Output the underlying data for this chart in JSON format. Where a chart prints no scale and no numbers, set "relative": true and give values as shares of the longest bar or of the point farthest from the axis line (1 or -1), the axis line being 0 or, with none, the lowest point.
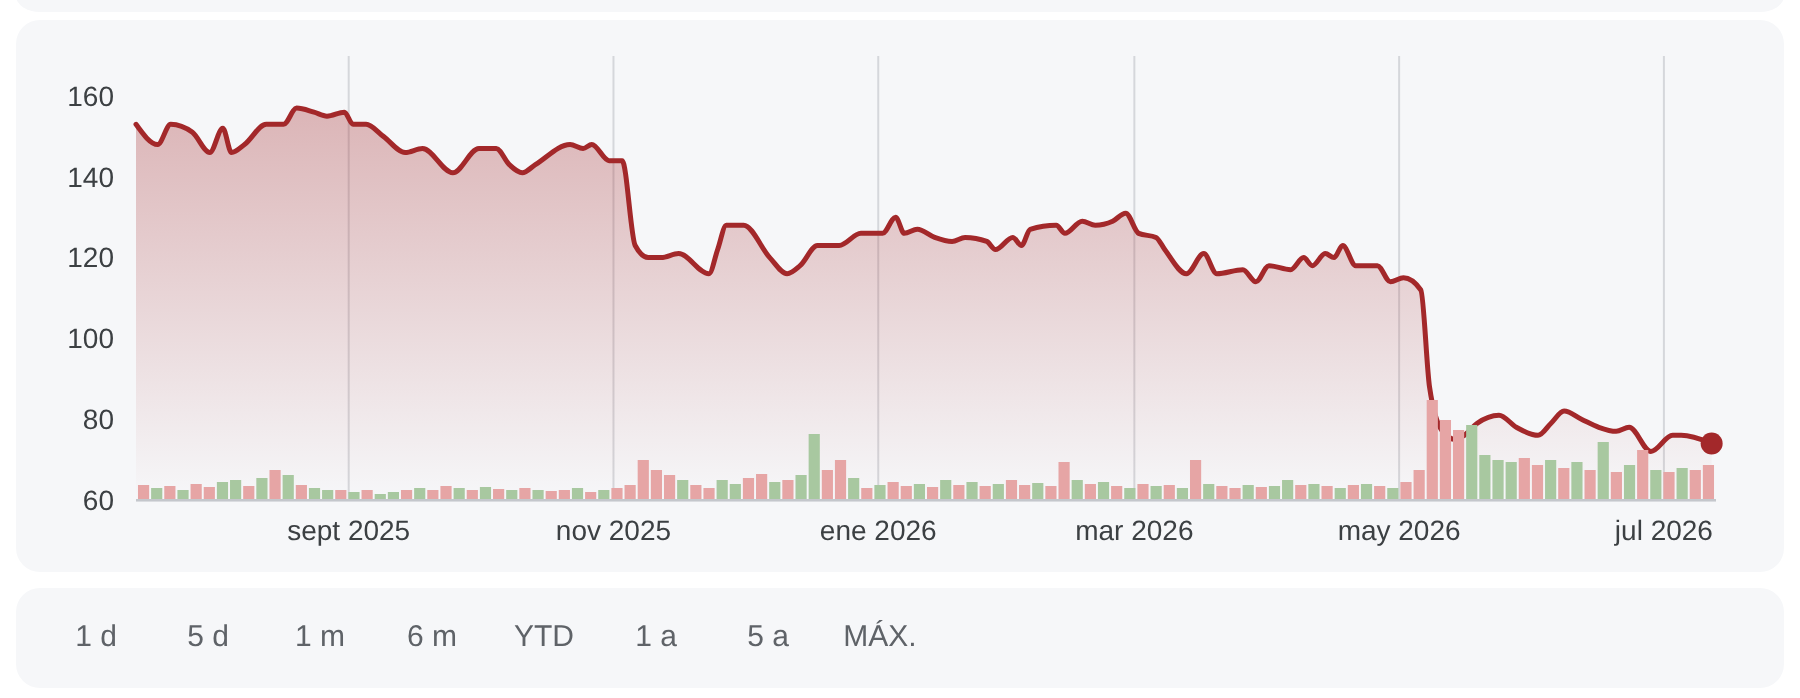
{
  "chart_data": [
    {
      "type": "area",
      "xlim": [
        "2025-07-14",
        "2026-07-13"
      ],
      "ylim": [
        60,
        160
      ],
      "yticks": [
        60,
        80,
        100,
        120,
        140,
        160
      ],
      "grid": "x",
      "xticks": [
        {
          "value": "2025-09-01",
          "label": "sept 2025"
        },
        {
          "value": "2025-11-01",
          "label": "nov 2025"
        },
        {
          "value": "2026-01-01",
          "label": "ene 2026"
        },
        {
          "value": "2026-03-01",
          "label": "mar 2026"
        },
        {
          "value": "2026-05-01",
          "label": "may 2026"
        },
        {
          "value": "2026-07-01",
          "label": "jul 2026"
        }
      ],
      "x": [
        "2025-07-14",
        "2025-07-19",
        "2025-07-22",
        "2025-07-27",
        "2025-07-31",
        "2025-08-03",
        "2025-08-05",
        "2025-08-08",
        "2025-08-13",
        "2025-08-17",
        "2025-08-20",
        "2025-08-24",
        "2025-08-27",
        "2025-08-31",
        "2025-09-02",
        "2025-09-05",
        "2025-09-09",
        "2025-09-14",
        "2025-09-18",
        "2025-09-25",
        "2025-10-01",
        "2025-10-05",
        "2025-10-08",
        "2025-10-11",
        "2025-10-14",
        "2025-10-22",
        "2025-10-25",
        "2025-10-27",
        "2025-10-31",
        "2025-11-03",
        "2025-11-06",
        "2025-11-09",
        "2025-11-12",
        "2025-11-16",
        "2025-11-23",
        "2025-11-25",
        "2025-11-27",
        "2025-12-01",
        "2025-12-07",
        "2025-12-11",
        "2025-12-14",
        "2025-12-18",
        "2025-12-23",
        "2025-12-28",
        "2026-01-02",
        "2026-01-05",
        "2026-01-07",
        "2026-01-10",
        "2026-01-14",
        "2026-01-18",
        "2026-01-21",
        "2026-01-26",
        "2026-01-28",
        "2026-02-01",
        "2026-02-03",
        "2026-02-05",
        "2026-02-11",
        "2026-02-13",
        "2026-02-17",
        "2026-02-20",
        "2026-02-24",
        "2026-02-27",
        "2026-03-02",
        "2026-03-06",
        "2026-03-08",
        "2026-03-13",
        "2026-03-17",
        "2026-03-20",
        "2026-03-26",
        "2026-03-29",
        "2026-04-01",
        "2026-04-06",
        "2026-04-09",
        "2026-04-11",
        "2026-04-14",
        "2026-04-16",
        "2026-04-18",
        "2026-04-21",
        "2026-04-26",
        "2026-04-29",
        "2026-05-02",
        "2026-05-06",
        "2026-05-08",
        "2026-05-11",
        "2026-05-14",
        "2026-05-16",
        "2026-05-19",
        "2026-05-24",
        "2026-05-28",
        "2026-06-02",
        "2026-06-05",
        "2026-06-08",
        "2026-06-12",
        "2026-06-16",
        "2026-06-20",
        "2026-06-23",
        "2026-06-28",
        "2026-07-03",
        "2026-07-05",
        "2026-07-12"
      ],
      "series": [
        {
          "color": "#a3282a",
          "values": [
            153,
            148,
            153,
            151,
            146,
            152,
            146,
            148,
            153,
            153,
            157,
            156,
            155,
            156,
            153,
            153,
            150,
            146,
            147,
            141,
            147,
            147,
            143,
            141,
            143,
            148,
            147,
            148,
            144,
            144,
            123,
            120,
            120,
            121,
            116,
            122,
            128,
            128,
            120,
            116,
            118,
            123,
            123,
            126,
            126,
            130,
            126,
            127,
            125,
            124,
            125,
            124,
            122,
            125,
            123,
            127,
            128,
            126,
            129,
            128,
            129,
            131,
            126,
            125,
            122,
            116,
            121,
            116,
            117,
            114,
            118,
            117,
            120,
            118,
            121,
            120,
            123,
            118,
            118,
            114,
            115,
            112,
            88,
            77,
            75,
            76,
            79,
            81,
            78,
            76,
            79,
            82,
            80,
            78,
            77,
            78,
            72,
            76,
            76,
            74
          ]
        }
      ]
    },
    {
      "type": "bar",
      "relative": true,
      "categories": [
        null,
        null,
        null,
        null,
        null,
        null,
        null,
        null,
        null,
        null,
        null,
        null,
        null,
        null,
        null,
        null,
        null,
        null,
        null,
        null,
        null,
        null,
        null,
        null,
        null,
        null,
        null,
        null,
        null,
        null,
        null,
        null,
        null,
        null,
        null,
        null,
        null,
        null,
        null,
        null,
        null,
        null,
        null,
        null,
        null,
        null,
        null,
        null,
        null,
        null,
        null,
        null,
        null,
        null,
        null,
        null,
        null,
        null,
        null,
        null,
        null,
        null,
        null,
        null,
        null,
        null,
        null,
        null,
        null,
        null,
        null,
        null,
        null,
        null,
        null,
        null,
        null,
        null,
        null,
        null,
        null,
        null,
        null,
        null,
        null,
        null,
        null,
        null,
        null,
        null,
        null,
        null,
        null,
        null,
        null,
        null,
        null,
        null,
        null,
        null,
        null,
        null,
        null,
        null,
        null,
        null,
        null,
        null,
        null,
        null,
        null,
        null,
        null,
        null,
        null,
        null,
        null,
        null,
        null,
        null
      ],
      "values": [
        0.15,
        0.12,
        0.14,
        0.1,
        0.16,
        0.13,
        0.18,
        0.2,
        0.14,
        0.22,
        0.3,
        0.25,
        0.15,
        0.12,
        0.1,
        0.1,
        0.08,
        0.1,
        0.06,
        0.08,
        0.1,
        0.12,
        0.1,
        0.14,
        0.12,
        0.1,
        0.13,
        0.11,
        0.1,
        0.12,
        0.1,
        0.09,
        0.1,
        0.12,
        0.08,
        0.1,
        0.12,
        0.15,
        0.4,
        0.3,
        0.25,
        0.2,
        0.15,
        0.12,
        0.2,
        0.16,
        0.22,
        0.26,
        0.18,
        0.2,
        0.25,
        0.66,
        0.3,
        0.4,
        0.22,
        0.12,
        0.15,
        0.18,
        0.14,
        0.16,
        0.13,
        0.2,
        0.15,
        0.18,
        0.14,
        0.16,
        0.2,
        0.15,
        0.17,
        0.14,
        0.38,
        0.2,
        0.16,
        0.18,
        0.14,
        0.12,
        0.16,
        0.14,
        0.15,
        0.12,
        0.4,
        0.16,
        0.14,
        0.12,
        0.15,
        0.13,
        0.14,
        0.2,
        0.15,
        0.16,
        0.14,
        0.12,
        0.15,
        0.16,
        0.14,
        0.12,
        0.18,
        0.3,
        1.0,
        0.8,
        0.7,
        0.75,
        0.45,
        0.4,
        0.38,
        0.42,
        0.35,
        0.4,
        0.32,
        0.38,
        0.3,
        0.58,
        0.28,
        0.35,
        0.5,
        0.3,
        0.28,
        0.32,
        0.3,
        0.35
      ],
      "colors": [
        "#e6a5a5",
        "#a8c8a0",
        "#e6a5a5",
        "#a8c8a0",
        "#e6a5a5",
        "#e6a5a5",
        "#a8c8a0",
        "#a8c8a0",
        "#e6a5a5",
        "#a8c8a0",
        "#e6a5a5",
        "#a8c8a0",
        "#e6a5a5",
        "#a8c8a0",
        "#a8c8a0",
        "#e6a5a5",
        "#a8c8a0",
        "#e6a5a5",
        "#a8c8a0",
        "#a8c8a0",
        "#e6a5a5",
        "#a8c8a0",
        "#e6a5a5",
        "#e6a5a5",
        "#a8c8a0",
        "#e6a5a5",
        "#a8c8a0",
        "#e6a5a5",
        "#a8c8a0",
        "#e6a5a5",
        "#a8c8a0",
        "#e6a5a5",
        "#e6a5a5",
        "#a8c8a0",
        "#e6a5a5",
        "#a8c8a0",
        "#e6a5a5",
        "#e6a5a5",
        "#e6a5a5",
        "#e6a5a5",
        "#e6a5a5",
        "#a8c8a0",
        "#e6a5a5",
        "#e6a5a5",
        "#a8c8a0",
        "#a8c8a0",
        "#e6a5a5",
        "#e6a5a5",
        "#a8c8a0",
        "#e6a5a5",
        "#a8c8a0",
        "#a8c8a0",
        "#e6a5a5",
        "#e6a5a5",
        "#a8c8a0",
        "#e6a5a5",
        "#a8c8a0",
        "#e6a5a5",
        "#e6a5a5",
        "#a8c8a0",
        "#e6a5a5",
        "#a8c8a0",
        "#e6a5a5",
        "#a8c8a0",
        "#e6a5a5",
        "#a8c8a0",
        "#e6a5a5",
        "#e6a5a5",
        "#a8c8a0",
        "#e6a5a5",
        "#e6a5a5",
        "#a8c8a0",
        "#e6a5a5",
        "#a8c8a0",
        "#e6a5a5",
        "#a8c8a0",
        "#e6a5a5",
        "#a8c8a0",
        "#e6a5a5",
        "#a8c8a0",
        "#e6a5a5",
        "#a8c8a0",
        "#e6a5a5",
        "#e6a5a5",
        "#a8c8a0",
        "#e6a5a5",
        "#a8c8a0",
        "#a8c8a0",
        "#e6a5a5",
        "#a8c8a0",
        "#e6a5a5",
        "#a8c8a0",
        "#e6a5a5",
        "#a8c8a0",
        "#e6a5a5",
        "#a8c8a0",
        "#e6a5a5",
        "#e6a5a5",
        "#e6a5a5",
        "#e6a5a5",
        "#e6a5a5",
        "#a8c8a0",
        "#a8c8a0",
        "#a8c8a0",
        "#a8c8a0",
        "#e6a5a5",
        "#e6a5a5",
        "#a8c8a0",
        "#e6a5a5",
        "#a8c8a0",
        "#e6a5a5",
        "#a8c8a0",
        "#e6a5a5",
        "#a8c8a0",
        "#e6a5a5",
        "#a8c8a0",
        "#e6a5a5",
        "#a8c8a0",
        "#e6a5a5",
        "#e6a5a5"
      ]
    },
    {
      "type": "other",
      "annotations": [
        "1 d",
        "5 d",
        "1 m",
        "6 m",
        "YTD",
        "1 a",
        "5 a",
        "MÁX."
      ]
    }
  ]
}
